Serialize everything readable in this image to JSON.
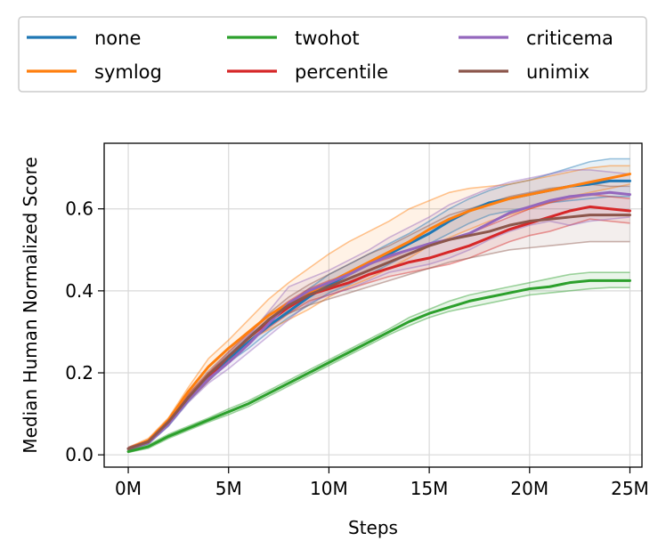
{
  "chart_data": {
    "type": "line",
    "title": "",
    "xlabel": "Steps",
    "ylabel": "Median Human Normalized Score",
    "xlim": [
      -1.2,
      25.6
    ],
    "ylim": [
      -0.03,
      0.76
    ],
    "x_ticks": [
      0,
      5,
      10,
      15,
      20,
      25
    ],
    "x_tick_labels": [
      "0M",
      "5M",
      "10M",
      "15M",
      "20M",
      "25M"
    ],
    "y_ticks": [
      0.0,
      0.2,
      0.4,
      0.6
    ],
    "y_tick_labels": [
      "0.0",
      "0.2",
      "0.4",
      "0.6"
    ],
    "grid": true,
    "legend_position": "top, above plot, 3 columns",
    "x": [
      0,
      1,
      2,
      3,
      4,
      5,
      6,
      7,
      8,
      9,
      10,
      11,
      12,
      13,
      14,
      15,
      16,
      17,
      18,
      19,
      20,
      21,
      22,
      23,
      24,
      25
    ],
    "series": [
      {
        "name": "none",
        "color": "#1f77b4",
        "values": [
          0.015,
          0.03,
          0.075,
          0.135,
          0.19,
          0.235,
          0.275,
          0.315,
          0.35,
          0.385,
          0.415,
          0.44,
          0.465,
          0.49,
          0.515,
          0.54,
          0.57,
          0.595,
          0.615,
          0.625,
          0.635,
          0.645,
          0.655,
          0.66,
          0.668,
          0.668
        ],
        "upper": [
          0.018,
          0.033,
          0.08,
          0.14,
          0.2,
          0.245,
          0.29,
          0.33,
          0.37,
          0.405,
          0.44,
          0.465,
          0.49,
          0.515,
          0.54,
          0.57,
          0.6,
          0.625,
          0.645,
          0.66,
          0.67,
          0.685,
          0.7,
          0.715,
          0.722,
          0.722
        ],
        "lower": [
          0.012,
          0.027,
          0.07,
          0.13,
          0.18,
          0.225,
          0.26,
          0.3,
          0.335,
          0.365,
          0.395,
          0.415,
          0.44,
          0.465,
          0.49,
          0.515,
          0.54,
          0.565,
          0.585,
          0.595,
          0.605,
          0.615,
          0.62,
          0.625,
          0.63,
          0.63
        ]
      },
      {
        "name": "symlog",
        "color": "#ff7f0e",
        "values": [
          0.015,
          0.035,
          0.085,
          0.155,
          0.215,
          0.26,
          0.3,
          0.34,
          0.37,
          0.395,
          0.42,
          0.445,
          0.47,
          0.495,
          0.52,
          0.55,
          0.575,
          0.595,
          0.61,
          0.625,
          0.635,
          0.645,
          0.655,
          0.665,
          0.675,
          0.685
        ],
        "upper": [
          0.018,
          0.04,
          0.09,
          0.165,
          0.235,
          0.28,
          0.33,
          0.38,
          0.42,
          0.455,
          0.49,
          0.52,
          0.545,
          0.57,
          0.6,
          0.62,
          0.64,
          0.65,
          0.655,
          0.66,
          0.67,
          0.68,
          0.69,
          0.7,
          0.705,
          0.705
        ],
        "lower": [
          0.012,
          0.03,
          0.08,
          0.145,
          0.2,
          0.24,
          0.28,
          0.305,
          0.33,
          0.355,
          0.385,
          0.41,
          0.43,
          0.455,
          0.48,
          0.51,
          0.53,
          0.55,
          0.57,
          0.585,
          0.6,
          0.615,
          0.63,
          0.64,
          0.65,
          0.66
        ]
      },
      {
        "name": "twohot",
        "color": "#2ca02c",
        "values": [
          0.008,
          0.02,
          0.045,
          0.065,
          0.085,
          0.105,
          0.125,
          0.15,
          0.175,
          0.2,
          0.225,
          0.25,
          0.275,
          0.3,
          0.325,
          0.345,
          0.36,
          0.375,
          0.385,
          0.395,
          0.405,
          0.41,
          0.42,
          0.425,
          0.425,
          0.425
        ],
        "upper": [
          0.01,
          0.024,
          0.05,
          0.07,
          0.09,
          0.112,
          0.132,
          0.157,
          0.182,
          0.207,
          0.232,
          0.257,
          0.282,
          0.307,
          0.335,
          0.355,
          0.375,
          0.39,
          0.4,
          0.41,
          0.42,
          0.43,
          0.44,
          0.445,
          0.445,
          0.445
        ],
        "lower": [
          0.006,
          0.016,
          0.04,
          0.06,
          0.08,
          0.098,
          0.118,
          0.143,
          0.168,
          0.193,
          0.218,
          0.243,
          0.268,
          0.293,
          0.315,
          0.335,
          0.35,
          0.36,
          0.37,
          0.38,
          0.39,
          0.395,
          0.4,
          0.405,
          0.408,
          0.408
        ]
      },
      {
        "name": "percentile",
        "color": "#d62728",
        "values": [
          0.015,
          0.032,
          0.08,
          0.14,
          0.19,
          0.24,
          0.285,
          0.325,
          0.36,
          0.39,
          0.405,
          0.42,
          0.44,
          0.455,
          0.47,
          0.48,
          0.495,
          0.51,
          0.53,
          0.55,
          0.565,
          0.58,
          0.595,
          0.605,
          0.6,
          0.595
        ],
        "upper": [
          0.018,
          0.036,
          0.085,
          0.148,
          0.2,
          0.25,
          0.295,
          0.34,
          0.375,
          0.405,
          0.425,
          0.44,
          0.465,
          0.48,
          0.5,
          0.51,
          0.525,
          0.54,
          0.56,
          0.58,
          0.6,
          0.615,
          0.625,
          0.635,
          0.63,
          0.625
        ],
        "lower": [
          0.012,
          0.028,
          0.075,
          0.132,
          0.18,
          0.23,
          0.275,
          0.31,
          0.345,
          0.375,
          0.39,
          0.405,
          0.42,
          0.435,
          0.445,
          0.455,
          0.465,
          0.48,
          0.5,
          0.52,
          0.535,
          0.545,
          0.56,
          0.575,
          0.57,
          0.565
        ]
      },
      {
        "name": "criticema",
        "color": "#9467bd",
        "values": [
          0.015,
          0.03,
          0.075,
          0.135,
          0.185,
          0.225,
          0.27,
          0.32,
          0.37,
          0.4,
          0.42,
          0.44,
          0.465,
          0.485,
          0.5,
          0.515,
          0.525,
          0.54,
          0.565,
          0.59,
          0.605,
          0.62,
          0.63,
          0.635,
          0.64,
          0.635
        ],
        "upper": [
          0.018,
          0.034,
          0.08,
          0.142,
          0.195,
          0.24,
          0.29,
          0.35,
          0.41,
          0.43,
          0.45,
          0.475,
          0.5,
          0.53,
          0.555,
          0.58,
          0.61,
          0.63,
          0.65,
          0.665,
          0.675,
          0.685,
          0.695,
          0.695,
          0.69,
          0.685
        ],
        "lower": [
          0.012,
          0.026,
          0.07,
          0.128,
          0.175,
          0.21,
          0.25,
          0.29,
          0.33,
          0.37,
          0.39,
          0.405,
          0.425,
          0.445,
          0.455,
          0.465,
          0.48,
          0.5,
          0.525,
          0.545,
          0.56,
          0.57,
          0.56,
          0.57,
          0.575,
          0.58
        ]
      },
      {
        "name": "unimix",
        "color": "#8c564b",
        "values": [
          0.015,
          0.032,
          0.08,
          0.14,
          0.195,
          0.24,
          0.285,
          0.33,
          0.365,
          0.39,
          0.41,
          0.43,
          0.45,
          0.47,
          0.49,
          0.51,
          0.525,
          0.535,
          0.545,
          0.56,
          0.57,
          0.575,
          0.58,
          0.585,
          0.585,
          0.585
        ],
        "upper": [
          0.018,
          0.036,
          0.086,
          0.148,
          0.205,
          0.252,
          0.298,
          0.345,
          0.385,
          0.415,
          0.44,
          0.465,
          0.49,
          0.51,
          0.535,
          0.56,
          0.585,
          0.6,
          0.615,
          0.63,
          0.64,
          0.65,
          0.655,
          0.66,
          0.655,
          0.655
        ],
        "lower": [
          0.012,
          0.028,
          0.074,
          0.132,
          0.185,
          0.228,
          0.272,
          0.315,
          0.345,
          0.365,
          0.38,
          0.395,
          0.41,
          0.425,
          0.44,
          0.455,
          0.47,
          0.48,
          0.49,
          0.5,
          0.505,
          0.51,
          0.515,
          0.52,
          0.52,
          0.52
        ]
      }
    ]
  }
}
